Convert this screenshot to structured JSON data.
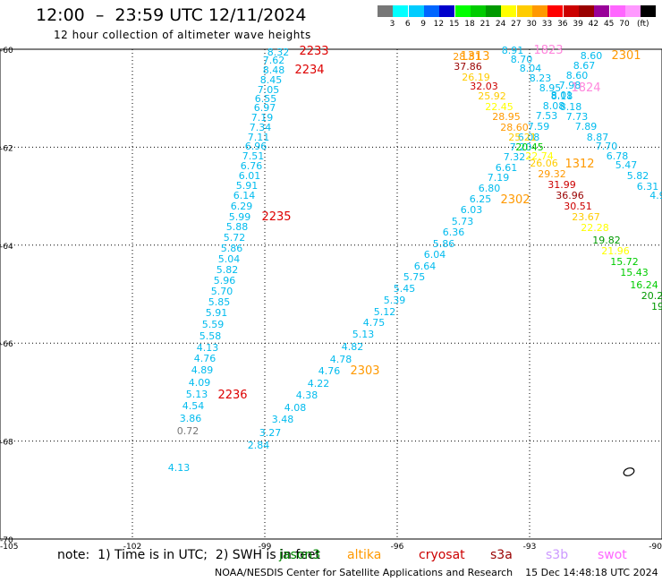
{
  "header": {
    "title": "12:00  –  23:59 UTC 12/11/2024",
    "subtitle": "12 hour collection of altimeter wave heights"
  },
  "legend": {
    "colors": [
      "#777777",
      "#00ffff",
      "#00ccff",
      "#0066ff",
      "#0000cc",
      "#00ff00",
      "#00cc00",
      "#009900",
      "#ffff00",
      "#ffcc00",
      "#ff9900",
      "#ff0000",
      "#cc0000",
      "#990000",
      "#990099",
      "#ff66ff",
      "#ff99ff",
      "#000000"
    ],
    "labels": [
      "3",
      "6",
      "9",
      "12",
      "15",
      "18",
      "21",
      "24",
      "27",
      "30",
      "33",
      "36",
      "39",
      "42",
      "45",
      "70"
    ],
    "unit": "(ft)"
  },
  "map": {
    "lat_labels": [
      "-60",
      "-62",
      "-64",
      "-66",
      "-68",
      "-70"
    ],
    "lon_labels": [
      "-105",
      "-102",
      "-99",
      "-96",
      "-93",
      "-90"
    ],
    "lon_lines": [
      -102,
      -99,
      -96,
      -93
    ],
    "lat_lines": [
      -62,
      -64,
      -66,
      -68
    ]
  },
  "note": "note:  1) Time is in UTC;  2) SWH is in feet",
  "satellites": [
    {
      "name": "jason3",
      "color": "#008800"
    },
    {
      "name": "altika",
      "color": "#ff9900"
    },
    {
      "name": "cryosat",
      "color": "#cc0000"
    },
    {
      "name": "s3a",
      "color": "#990000"
    },
    {
      "name": "s3b",
      "color": "#cc99ff"
    },
    {
      "name": "swot",
      "color": "#ff66ff"
    }
  ],
  "credit": "NOAA/NESDIS Center for Satellite Applications and Research    15 Dec 14:48:18 UTC 2024",
  "track_a": {
    "color": "#00bbee",
    "values": [
      "8.32",
      "7.62",
      "8.48",
      "8.45",
      "7.05",
      "6.55",
      "6.97",
      "7.19",
      "7.34",
      "7.11",
      "6.96",
      "7.51",
      "6.76",
      "6.01",
      "5.91",
      "6.14",
      "6.29",
      "5.99",
      "5.88",
      "5.72",
      "5.86",
      "5.04",
      "5.82",
      "5.96",
      "5.70",
      "5.85",
      "5.91",
      "5.59",
      "5.58",
      "4.13",
      "4.76",
      "4.89",
      "4.09",
      "5.13",
      "4.54",
      "3.86"
    ],
    "extra": [
      {
        "v": "0.72",
        "c": "#777777"
      },
      {
        "v": "4.13",
        "c": "#00bbee"
      }
    ]
  },
  "track_b": {
    "color": "#00bbee",
    "values": [
      "2.84",
      "3.27",
      "3.48",
      "4.08",
      "4.38",
      "4.22",
      "4.76",
      "4.78",
      "4.82",
      "5.13",
      "4.75",
      "5.12",
      "5.39",
      "5.45",
      "5.75",
      "6.64",
      "6.04",
      "5.86",
      "6.36",
      "5.73",
      "6.03",
      "6.25",
      "6.80",
      "7.19",
      "6.61",
      "7.32",
      "7.20",
      "6.08",
      "7.59",
      "7.53",
      "8.08",
      "8.18",
      "8.95",
      "8.23",
      "8.04",
      "8.70",
      "8.91"
    ]
  },
  "track_c": [
    {
      "v": "28.81",
      "c": "#ff9900"
    },
    {
      "v": "37.86",
      "c": "#990000"
    },
    {
      "v": "26.19",
      "c": "#ffcc00"
    },
    {
      "v": "32.03",
      "c": "#cc0000"
    },
    {
      "v": "25.92",
      "c": "#ffcc00"
    },
    {
      "v": "22.45",
      "c": "#ffff00"
    },
    {
      "v": "28.95",
      "c": "#ff9900"
    },
    {
      "v": "28.60",
      "c": "#ff9900"
    },
    {
      "v": "25.21",
      "c": "#ffcc00"
    },
    {
      "v": "20.45",
      "c": "#00cc00"
    },
    {
      "v": "22.74",
      "c": "#ffff00"
    },
    {
      "v": "26.06",
      "c": "#ffcc00"
    },
    {
      "v": "29.32",
      "c": "#ff9900"
    },
    {
      "v": "31.99",
      "c": "#cc0000"
    },
    {
      "v": "36.96",
      "c": "#990000"
    },
    {
      "v": "30.51",
      "c": "#cc0000"
    },
    {
      "v": "23.67",
      "c": "#ffcc00"
    },
    {
      "v": "22.28",
      "c": "#ffff00"
    },
    {
      "v": "19.82",
      "c": "#009900"
    },
    {
      "v": "21.96",
      "c": "#ffff00"
    },
    {
      "v": "15.72",
      "c": "#00cc00"
    },
    {
      "v": "15.43",
      "c": "#00cc00"
    },
    {
      "v": "16.24",
      "c": "#00cc00"
    },
    {
      "v": "20.2",
      "c": "#009900"
    },
    {
      "v": "19",
      "c": "#009900"
    }
  ],
  "track_d": {
    "color": "#00bbee",
    "values": [
      "8.60",
      "8.67",
      "8.60",
      "7.98",
      "8.01",
      "8.18",
      "7.73",
      "7.89",
      "8.87",
      "7.70",
      "6.78",
      "5.47",
      "5.82",
      "6.31",
      "4.9"
    ]
  },
  "time_labels": [
    {
      "t": "2233",
      "c": "#dd0000"
    },
    {
      "t": "2234",
      "c": "#dd0000"
    },
    {
      "t": "2235",
      "c": "#dd0000"
    },
    {
      "t": "2236",
      "c": "#dd0000"
    },
    {
      "t": "2303",
      "c": "#ff9900"
    },
    {
      "t": "2302",
      "c": "#ff9900"
    },
    {
      "t": "1313",
      "c": "#ff9900"
    },
    {
      "t": "1312",
      "c": "#ff9900"
    },
    {
      "t": "2301",
      "c": "#ff9900"
    },
    {
      "t": "1823",
      "c": "#ff88dd"
    },
    {
      "t": "1824",
      "c": "#ff88dd"
    }
  ]
}
